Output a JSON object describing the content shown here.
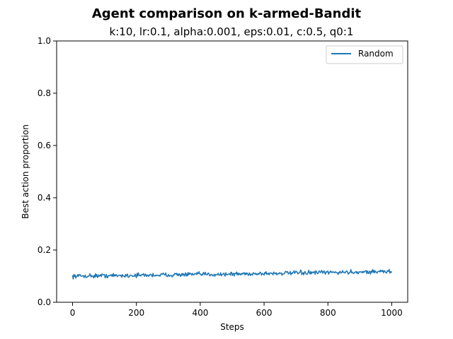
{
  "chart_data": {
    "type": "line",
    "title": "Agent comparison on k-armed-Bandit",
    "subtitle": "k:10, lr:0.1, alpha:0.001, eps:0.01, c:0.5, q0:1",
    "xlabel": "Steps",
    "ylabel": "Best action proportion",
    "xlim": [
      -50,
      1050
    ],
    "ylim": [
      0.0,
      1.0
    ],
    "xticks": [
      0,
      200,
      400,
      600,
      800,
      1000
    ],
    "yticks": [
      0.0,
      0.2,
      0.4,
      0.6,
      0.8,
      1.0
    ],
    "xtick_labels": [
      "0",
      "200",
      "400",
      "600",
      "800",
      "1000"
    ],
    "ytick_labels": [
      "0.0",
      "0.2",
      "0.4",
      "0.6",
      "0.8",
      "1.0"
    ],
    "grid": false,
    "legend": {
      "position": "top-right",
      "entries": [
        "Random"
      ]
    },
    "series": [
      {
        "name": "Random",
        "color": "#1f77b4",
        "x": [
          0,
          50,
          100,
          150,
          200,
          250,
          300,
          350,
          400,
          450,
          500,
          550,
          600,
          650,
          700,
          750,
          800,
          850,
          900,
          950,
          1000
        ],
        "y": [
          0.1,
          0.101,
          0.102,
          0.102,
          0.103,
          0.104,
          0.105,
          0.106,
          0.107,
          0.107,
          0.108,
          0.109,
          0.11,
          0.111,
          0.112,
          0.113,
          0.114,
          0.115,
          0.116,
          0.117,
          0.118
        ],
        "noise_amplitude": 0.008
      }
    ]
  }
}
